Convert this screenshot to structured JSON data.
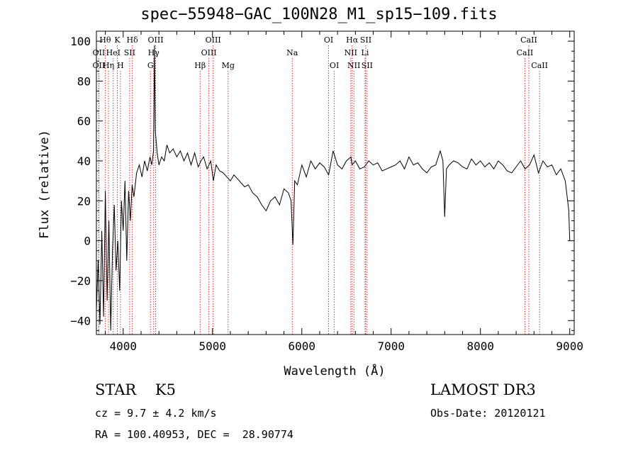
{
  "chart_data": {
    "type": "line",
    "title": "spec−55948−GAC_100N28_M1_sp15−109.fits",
    "xlabel": "Wavelength (Å)",
    "ylabel": "Flux (relative)",
    "xlim": [
      3700,
      9050
    ],
    "ylim": [
      -47,
      105
    ],
    "xticks": [
      4000,
      5000,
      6000,
      7000,
      8000,
      9000
    ],
    "xtick_labels": [
      "4000",
      "5000",
      "6000",
      "7000",
      "8000",
      "9000"
    ],
    "yticks": [
      -40,
      -20,
      0,
      20,
      40,
      60,
      80,
      100
    ],
    "ytick_labels": [
      "−40",
      "−20",
      "0",
      "20",
      "40",
      "60",
      "80",
      "100"
    ],
    "series": [
      {
        "name": "flux",
        "x": [
          3700,
          3720,
          3740,
          3760,
          3780,
          3800,
          3820,
          3840,
          3860,
          3880,
          3900,
          3920,
          3940,
          3960,
          3980,
          4000,
          4020,
          4040,
          4060,
          4080,
          4100,
          4120,
          4150,
          4180,
          4210,
          4240,
          4270,
          4300,
          4320,
          4340,
          4350,
          4360,
          4380,
          4400,
          4430,
          4460,
          4490,
          4520,
          4560,
          4600,
          4640,
          4680,
          4720,
          4760,
          4800,
          4840,
          4870,
          4900,
          4940,
          4980,
          5010,
          5040,
          5080,
          5120,
          5160,
          5200,
          5240,
          5280,
          5320,
          5360,
          5400,
          5450,
          5500,
          5550,
          5600,
          5650,
          5700,
          5750,
          5800,
          5850,
          5880,
          5900,
          5920,
          5950,
          6000,
          6050,
          6100,
          6150,
          6200,
          6250,
          6300,
          6350,
          6400,
          6450,
          6500,
          6550,
          6563,
          6600,
          6650,
          6700,
          6750,
          6800,
          6850,
          6900,
          6950,
          7000,
          7050,
          7100,
          7150,
          7200,
          7250,
          7300,
          7350,
          7400,
          7450,
          7500,
          7550,
          7580,
          7600,
          7620,
          7650,
          7700,
          7750,
          7800,
          7850,
          7900,
          7950,
          8000,
          8050,
          8100,
          8150,
          8200,
          8250,
          8300,
          8350,
          8400,
          8450,
          8500,
          8550,
          8600,
          8650,
          8700,
          8750,
          8800,
          8850,
          8900,
          8950,
          8990,
          9000
        ],
        "values": [
          -35,
          -10,
          -42,
          5,
          -38,
          25,
          -30,
          10,
          -45,
          -5,
          18,
          -15,
          0,
          -25,
          20,
          5,
          30,
          -10,
          25,
          10,
          28,
          22,
          34,
          38,
          32,
          40,
          35,
          42,
          38,
          45,
          98,
          55,
          44,
          38,
          42,
          40,
          48,
          44,
          46,
          42,
          45,
          40,
          44,
          38,
          44,
          37,
          40,
          42,
          36,
          40,
          30,
          38,
          35,
          34,
          32,
          30,
          33,
          31,
          29,
          27,
          28,
          24,
          22,
          18,
          15,
          20,
          22,
          18,
          26,
          24,
          20,
          -2,
          30,
          28,
          38,
          32,
          40,
          36,
          39,
          37,
          33,
          45,
          38,
          36,
          40,
          42,
          38,
          40,
          36,
          37,
          40,
          38,
          39,
          35,
          36,
          37,
          38,
          40,
          36,
          42,
          38,
          39,
          36,
          34,
          37,
          38,
          45,
          40,
          12,
          36,
          38,
          40,
          39,
          37,
          36,
          41,
          38,
          40,
          37,
          39,
          36,
          40,
          38,
          35,
          34,
          37,
          40,
          36,
          38,
          43,
          34,
          40,
          37,
          38,
          33,
          36,
          30,
          15,
          0
        ]
      }
    ],
    "line_markers": [
      {
        "label": "Hθ",
        "wavelength": 3798,
        "row": 0
      },
      {
        "label": "K",
        "wavelength": 3934,
        "row": 0
      },
      {
        "label": "Hδ",
        "wavelength": 4102,
        "row": 0
      },
      {
        "label": "OII",
        "wavelength": 3727,
        "row": 1
      },
      {
        "label": "HeI",
        "wavelength": 3889,
        "row": 1
      },
      {
        "label": "SII",
        "wavelength": 4072,
        "row": 1
      },
      {
        "label": "OII",
        "wavelength": 3727,
        "row": 2
      },
      {
        "label": "Hη",
        "wavelength": 3835,
        "row": 2
      },
      {
        "label": "H",
        "wavelength": 3969,
        "row": 2
      },
      {
        "label": "OIII",
        "wavelength": 4363,
        "row": 0
      },
      {
        "label": "Hγ",
        "wavelength": 4341,
        "row": 1
      },
      {
        "label": "G",
        "wavelength": 4305,
        "row": 2
      },
      {
        "label": "OIII",
        "wavelength": 5007,
        "row": 0
      },
      {
        "label": "OIII",
        "wavelength": 4959,
        "row": 1
      },
      {
        "label": "Hβ",
        "wavelength": 4861,
        "row": 2
      },
      {
        "label": "Mg",
        "wavelength": 5175,
        "row": 2
      },
      {
        "label": "Na",
        "wavelength": 5893,
        "row": 1
      },
      {
        "label": "OI",
        "wavelength": 6300,
        "row": 0
      },
      {
        "label": "OI",
        "wavelength": 6364,
        "row": 2
      },
      {
        "label": "Hα",
        "wavelength": 6563,
        "row": 0
      },
      {
        "label": "NII",
        "wavelength": 6548,
        "row": 1
      },
      {
        "label": "NII",
        "wavelength": 6583,
        "row": 2
      },
      {
        "label": "SII",
        "wavelength": 6716,
        "row": 0
      },
      {
        "label": "Li",
        "wavelength": 6708,
        "row": 1
      },
      {
        "label": "SII",
        "wavelength": 6731,
        "row": 2
      },
      {
        "label": "CaII",
        "wavelength": 8542,
        "row": 0
      },
      {
        "label": "CaII",
        "wavelength": 8498,
        "row": 1
      },
      {
        "label": "CaII",
        "wavelength": 8662,
        "row": 2
      }
    ]
  },
  "info": {
    "class_line": "STAR    K5",
    "survey": "LAMOST DR3",
    "cz_line": "cz = 9.7 ± 4.2 km/s",
    "obs_date": "Obs-Date: 20120121",
    "radec_line": "RA = 100.40953, DEC =  28.90774"
  }
}
